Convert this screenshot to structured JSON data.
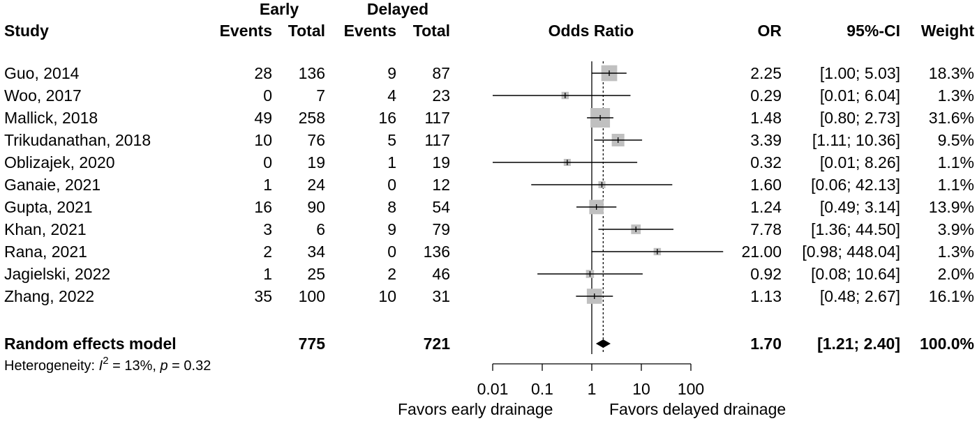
{
  "header": {
    "group1": "Early",
    "group2": "Delayed",
    "study": "Study",
    "events": "Events",
    "total": "Total",
    "plot_label": "Odds Ratio",
    "or": "OR",
    "ci": "95%-CI",
    "weight": "Weight"
  },
  "rows": [
    {
      "study": "Guo, 2014",
      "e_events": "28",
      "e_total": "136",
      "d_events": "9",
      "d_total": "87",
      "or": "2.25",
      "ci": "[1.00;  5.03]",
      "weight": "18.3%"
    },
    {
      "study": "Woo, 2017",
      "e_events": "0",
      "e_total": "7",
      "d_events": "4",
      "d_total": "23",
      "or": "0.29",
      "ci": "[0.01;  6.04]",
      "weight": "1.3%"
    },
    {
      "study": "Mallick, 2018",
      "e_events": "49",
      "e_total": "258",
      "d_events": "16",
      "d_total": "117",
      "or": "1.48",
      "ci": "[0.80;  2.73]",
      "weight": "31.6%"
    },
    {
      "study": "Trikudanathan, 2018",
      "e_events": "10",
      "e_total": "76",
      "d_events": "5",
      "d_total": "117",
      "or": "3.39",
      "ci": "[1.11; 10.36]",
      "weight": "9.5%"
    },
    {
      "study": "Oblizajek, 2020",
      "e_events": "0",
      "e_total": "19",
      "d_events": "1",
      "d_total": "19",
      "or": "0.32",
      "ci": "[0.01;  8.26]",
      "weight": "1.1%"
    },
    {
      "study": "Ganaie, 2021",
      "e_events": "1",
      "e_total": "24",
      "d_events": "0",
      "d_total": "12",
      "or": "1.60",
      "ci": "[0.06; 42.13]",
      "weight": "1.1%"
    },
    {
      "study": "Gupta, 2021",
      "e_events": "16",
      "e_total": "90",
      "d_events": "8",
      "d_total": "54",
      "or": "1.24",
      "ci": "[0.49;  3.14]",
      "weight": "13.9%"
    },
    {
      "study": "Khan, 2021",
      "e_events": "3",
      "e_total": "6",
      "d_events": "9",
      "d_total": "79",
      "or": "7.78",
      "ci": "[1.36; 44.50]",
      "weight": "3.9%"
    },
    {
      "study": "Rana, 2021",
      "e_events": "2",
      "e_total": "34",
      "d_events": "0",
      "d_total": "136",
      "or": "21.00",
      "ci": "[0.98; 448.04]",
      "weight": "1.3%"
    },
    {
      "study": "Jagielski, 2022",
      "e_events": "1",
      "e_total": "25",
      "d_events": "2",
      "d_total": "46",
      "or": "0.92",
      "ci": "[0.08; 10.64]",
      "weight": "2.0%"
    },
    {
      "study": "Zhang, 2022",
      "e_events": "35",
      "e_total": "100",
      "d_events": "10",
      "d_total": "31",
      "or": "1.13",
      "ci": "[0.48;  2.67]",
      "weight": "16.1%"
    }
  ],
  "summary": {
    "label": "Random effects model",
    "e_total": "775",
    "d_total": "721",
    "or": "1.70",
    "ci": "[1.21;  2.40]",
    "weight": "100.0%"
  },
  "heterogeneity": {
    "prefix": "Heterogeneity: ",
    "i": "I",
    "i_sup": "2",
    "mid": " = 13%, ",
    "p": "p",
    "end": " = 0.32"
  },
  "axis": {
    "ticks": [
      "0.01",
      "0.1",
      "1",
      "10",
      "100"
    ],
    "left_label": "Favors early drainage",
    "right_label": "Favors delayed drainage"
  },
  "chart_data": {
    "type": "forest",
    "title": "",
    "xlabel": "Odds Ratio",
    "scale": "log",
    "xlim": [
      0.01,
      100
    ],
    "null_value": 1,
    "studies": [
      {
        "name": "Guo, 2014",
        "or": 2.25,
        "lower": 1.0,
        "upper": 5.03,
        "weight": 18.3
      },
      {
        "name": "Woo, 2017",
        "or": 0.29,
        "lower": 0.01,
        "upper": 6.04,
        "weight": 1.3
      },
      {
        "name": "Mallick, 2018",
        "or": 1.48,
        "lower": 0.8,
        "upper": 2.73,
        "weight": 31.6
      },
      {
        "name": "Trikudanathan, 2018",
        "or": 3.39,
        "lower": 1.11,
        "upper": 10.36,
        "weight": 9.5
      },
      {
        "name": "Oblizajek, 2020",
        "or": 0.32,
        "lower": 0.01,
        "upper": 8.26,
        "weight": 1.1
      },
      {
        "name": "Ganaie, 2021",
        "or": 1.6,
        "lower": 0.06,
        "upper": 42.13,
        "weight": 1.1
      },
      {
        "name": "Gupta, 2021",
        "or": 1.24,
        "lower": 0.49,
        "upper": 3.14,
        "weight": 13.9
      },
      {
        "name": "Khan, 2021",
        "or": 7.78,
        "lower": 1.36,
        "upper": 44.5,
        "weight": 3.9
      },
      {
        "name": "Rana, 2021",
        "or": 21.0,
        "lower": 0.98,
        "upper": 448.04,
        "weight": 1.3
      },
      {
        "name": "Jagielski, 2022",
        "or": 0.92,
        "lower": 0.08,
        "upper": 10.64,
        "weight": 2.0
      },
      {
        "name": "Zhang, 2022",
        "or": 1.13,
        "lower": 0.48,
        "upper": 2.67,
        "weight": 16.1
      }
    ],
    "pooled": {
      "name": "Random effects model",
      "or": 1.7,
      "lower": 1.21,
      "upper": 2.4,
      "weight": 100.0
    },
    "colors": {
      "box": "#c0c0c0",
      "line": "#000000",
      "diamond": "#000000"
    }
  }
}
